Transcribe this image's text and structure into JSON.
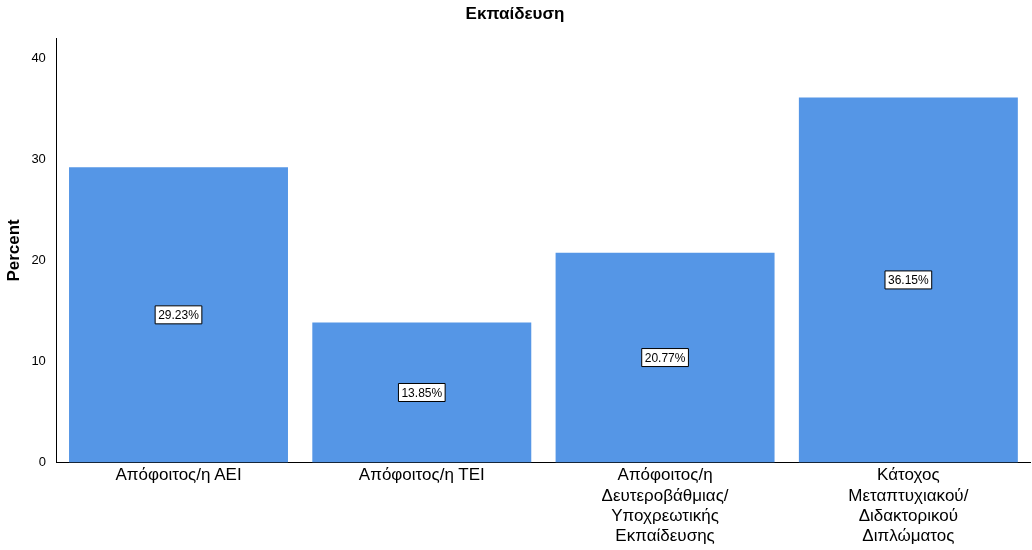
{
  "chart_data": {
    "type": "bar",
    "title": "Εκπαίδευση",
    "ylabel": "Percent",
    "categories": [
      "Απόφοιτος/η ΑΕΙ",
      "Απόφοιτος/η ΤΕΙ",
      "Απόφοιτος/η Δευτεροβάθμιας/ Υποχρεωτικής Εκπαίδευσης",
      "Κάτοχος Μεταπτυχιακού/ Διδακτορικού Διπλώματος"
    ],
    "values": [
      29.23,
      13.85,
      20.77,
      36.15
    ],
    "value_labels": [
      "29.23%",
      "13.85%",
      "20.77%",
      "36.15%"
    ],
    "color": "#5596e6",
    "ylim": [
      0,
      42
    ],
    "yticks": [
      0,
      10,
      20,
      30,
      40
    ],
    "grid": false,
    "legend": false
  }
}
